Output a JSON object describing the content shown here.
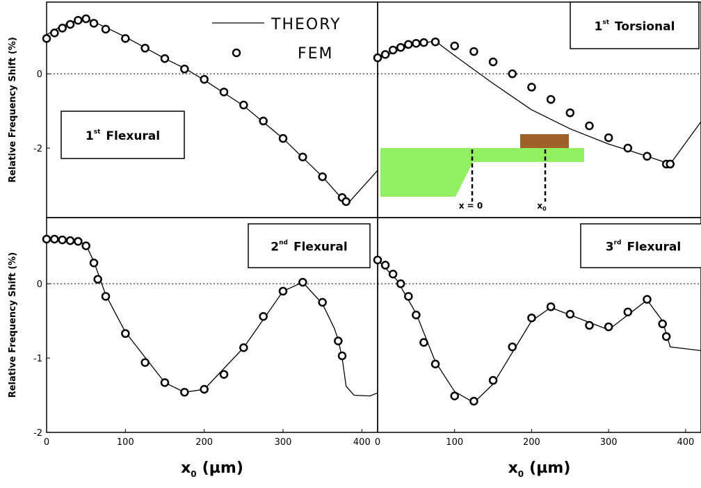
{
  "chart_data": [
    {
      "type": "line",
      "ylabel": "Relative Frequency Shift (%)",
      "annotation": {
        "number": "1",
        "sup": "st",
        "text": "Flexural"
      },
      "xlim": [
        0,
        420
      ],
      "ylim": [
        -3.87,
        1.93
      ],
      "yticks": [
        -2,
        0
      ],
      "hline": 0,
      "series": [
        {
          "name": "THEORY",
          "color": "#000000",
          "x": [
            0,
            20,
            48,
            75,
            100,
            150,
            175,
            200,
            250,
            300,
            350,
            378,
            382,
            420
          ],
          "values": [
            1.05,
            1.3,
            1.51,
            1.25,
            0.99,
            0.41,
            0.15,
            -0.17,
            -0.86,
            -1.74,
            -2.77,
            -3.44,
            -3.5,
            -2.6
          ]
        },
        {
          "name": "FEM",
          "color": "#000000",
          "x": [
            0,
            10,
            20,
            30,
            40,
            50,
            60,
            75,
            100,
            125,
            150,
            175,
            200,
            225,
            250,
            275,
            300,
            325,
            350,
            375,
            380
          ],
          "values": [
            0.95,
            1.1,
            1.23,
            1.33,
            1.44,
            1.48,
            1.36,
            1.2,
            0.95,
            0.69,
            0.41,
            0.13,
            -0.15,
            -0.49,
            -0.84,
            -1.27,
            -1.74,
            -2.24,
            -2.77,
            -3.33,
            -3.44
          ]
        }
      ]
    },
    {
      "type": "line",
      "annotation": {
        "number": "1",
        "sup": "st",
        "text": "Torsional"
      },
      "inset_labels": {
        "origin": "x = 0",
        "position": "x",
        "position_sub": "0"
      },
      "xlim": [
        0,
        420
      ],
      "ylim": [
        -3.87,
        1.93
      ],
      "hline": 0,
      "series": [
        {
          "color": "#000000",
          "x": [
            0,
            25,
            50,
            75,
            100,
            150,
            200,
            250,
            300,
            350,
            380,
            420
          ],
          "values": [
            0.39,
            0.62,
            0.8,
            0.88,
            0.49,
            -0.26,
            -0.97,
            -1.48,
            -1.89,
            -2.22,
            -2.43,
            -1.29
          ]
        },
        {
          "color": "#000000",
          "x": [
            0,
            10,
            20,
            30,
            40,
            50,
            60,
            75,
            100,
            125,
            150,
            175,
            200,
            225,
            250,
            275,
            300,
            325,
            350,
            375,
            380
          ],
          "values": [
            0.43,
            0.52,
            0.64,
            0.71,
            0.79,
            0.82,
            0.84,
            0.86,
            0.75,
            0.6,
            0.32,
            0,
            -0.36,
            -0.69,
            -1.05,
            -1.4,
            -1.72,
            -2.0,
            -2.22,
            -2.43,
            -2.43
          ]
        }
      ]
    },
    {
      "type": "line",
      "ylabel": "Relative Frequency Shift (%)",
      "xlabel": {
        "main": "x",
        "sub": "0",
        "unit": "(µm)"
      },
      "annotation": {
        "number": "2",
        "sup": "nd",
        "text": "Flexural"
      },
      "xlim": [
        0,
        420
      ],
      "ylim": [
        -2,
        0.89
      ],
      "xticks": [
        0,
        100,
        200,
        300,
        400
      ],
      "yticks": [
        -2,
        -1,
        0
      ],
      "hline": 0,
      "series": [
        {
          "color": "#000000",
          "x": [
            0,
            40,
            50,
            60,
            75,
            100,
            150,
            175,
            200,
            250,
            300,
            325,
            350,
            365,
            370,
            375,
            380,
            390,
            410,
            420
          ],
          "values": [
            0.6,
            0.57,
            0.52,
            0.3,
            -0.15,
            -0.65,
            -1.33,
            -1.46,
            -1.42,
            -0.86,
            -0.1,
            0.02,
            -0.27,
            -0.6,
            -0.75,
            -1.0,
            -1.38,
            -1.5,
            -1.51,
            -1.47
          ]
        },
        {
          "color": "#000000",
          "x": [
            0,
            10,
            20,
            30,
            40,
            50,
            60,
            65,
            75,
            100,
            125,
            150,
            175,
            200,
            225,
            250,
            275,
            300,
            325,
            350,
            370,
            375
          ],
          "values": [
            0.6,
            0.6,
            0.59,
            0.58,
            0.57,
            0.51,
            0.28,
            0.06,
            -0.17,
            -0.67,
            -1.06,
            -1.33,
            -1.46,
            -1.42,
            -1.22,
            -0.86,
            -0.44,
            -0.1,
            0.02,
            -0.25,
            -0.77,
            -0.97
          ]
        }
      ]
    },
    {
      "type": "line",
      "xlabel": {
        "main": "x",
        "sub": "0",
        "unit": "(µm)"
      },
      "annotation": {
        "number": "3",
        "sup": "rd",
        "text": "Flexural"
      },
      "xlim": [
        0,
        420
      ],
      "ylim": [
        -2,
        0.89
      ],
      "xticks": [
        0,
        100,
        200,
        300,
        400
      ],
      "hline": 0,
      "series": [
        {
          "color": "#000000",
          "x": [
            0,
            25,
            50,
            75,
            100,
            125,
            150,
            200,
            225,
            250,
            300,
            350,
            370,
            380,
            420
          ],
          "values": [
            0.32,
            0.05,
            -0.4,
            -1.05,
            -1.45,
            -1.6,
            -1.35,
            -0.5,
            -0.32,
            -0.42,
            -0.62,
            -0.22,
            -0.5,
            -0.85,
            -0.9
          ]
        },
        {
          "color": "#000000",
          "x": [
            0,
            10,
            20,
            30,
            40,
            50,
            60,
            75,
            100,
            125,
            150,
            175,
            200,
            225,
            250,
            275,
            300,
            325,
            350,
            370,
            375
          ],
          "values": [
            0.32,
            0.25,
            0.13,
            0,
            -0.17,
            -0.42,
            -0.79,
            -1.08,
            -1.51,
            -1.58,
            -1.3,
            -0.85,
            -0.46,
            -0.31,
            -0.41,
            -0.56,
            -0.58,
            -0.38,
            -0.21,
            -0.54,
            -0.71
          ]
        }
      ]
    }
  ]
}
